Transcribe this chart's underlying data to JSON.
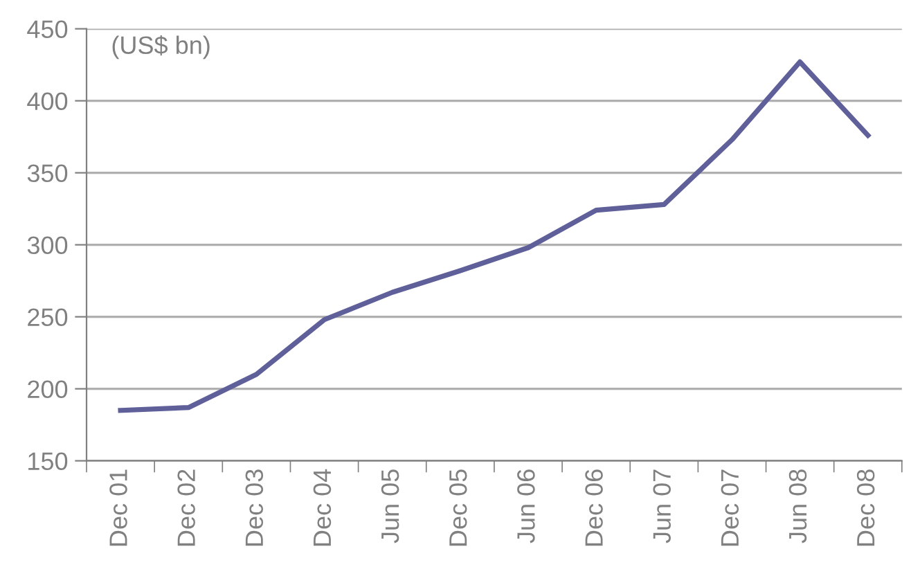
{
  "chart_data": {
    "type": "line",
    "ylabel": "(US$ bn)",
    "categories": [
      "Dec 01",
      "Dec 02",
      "Dec 03",
      "Dec 04",
      "Jun 05",
      "Dec 05",
      "Jun 06",
      "Dec 06",
      "Jun 07",
      "Dec 07",
      "Jun 08",
      "Dec 08"
    ],
    "series": [
      {
        "color": "#5f5f9a",
        "values": [
          185,
          187,
          210,
          248,
          267,
          282,
          298,
          324,
          328,
          373,
          427,
          376
        ]
      }
    ],
    "ylim": [
      150,
      450
    ],
    "yticks": [
      150,
      200,
      250,
      300,
      350,
      400,
      450
    ],
    "grid": "y",
    "legend": false,
    "marker": "none",
    "line_style": "solid"
  }
}
